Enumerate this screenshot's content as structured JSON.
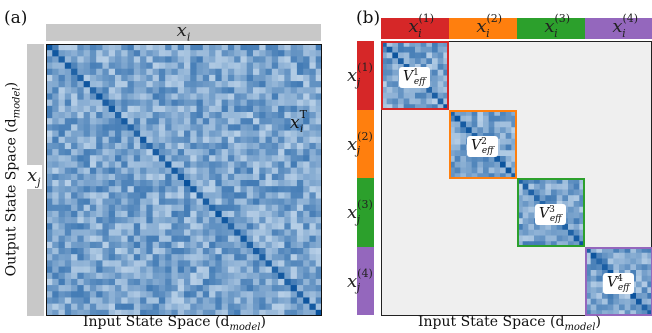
{
  "panel_a": {
    "label": "(a)",
    "top_bar_label": "x",
    "top_bar_sub": "i",
    "left_bar_label": "x",
    "left_bar_sub": "j",
    "transpose_label": "x",
    "transpose_sub": "i",
    "transpose_sup": "T",
    "x_axis_title": "Input State Space (d",
    "x_axis_title_sub": "model",
    "x_axis_title_end": ")",
    "y_axis_title": "Output State Space (d",
    "y_axis_title_sub": "model",
    "y_axis_title_end": ")"
  },
  "panel_b": {
    "label": "(b)",
    "blocks": [
      {
        "top_label": "x",
        "sub": "i",
        "sup": "(1)",
        "left_label": "x",
        "left_sub": "j",
        "v_label": "V",
        "v_sup": "1",
        "v_sub": "eff",
        "color": "#d62728"
      },
      {
        "top_label": "x",
        "sub": "i",
        "sup": "(2)",
        "left_label": "x",
        "left_sub": "j",
        "v_label": "V",
        "v_sup": "2",
        "v_sub": "eff",
        "color": "#ff7f0e"
      },
      {
        "top_label": "x",
        "sub": "i",
        "sup": "(3)",
        "left_label": "x",
        "left_sub": "j",
        "v_label": "V",
        "v_sup": "3",
        "v_sub": "eff",
        "color": "#2ca02c"
      },
      {
        "top_label": "x",
        "sub": "i",
        "sup": "(4)",
        "left_label": "x",
        "left_sub": "j",
        "v_label": "V",
        "v_sup": "4",
        "v_sub": "eff",
        "color": "#9467bd"
      }
    ],
    "x_axis_title": "Input State Space (d",
    "x_axis_title_sub": "model",
    "x_axis_title_end": ")"
  },
  "colors": {
    "gray_bar": "#c8c8c8",
    "background_fill": "#efefef",
    "heat_light": "#deebf7",
    "heat_dark": "#08519c"
  }
}
